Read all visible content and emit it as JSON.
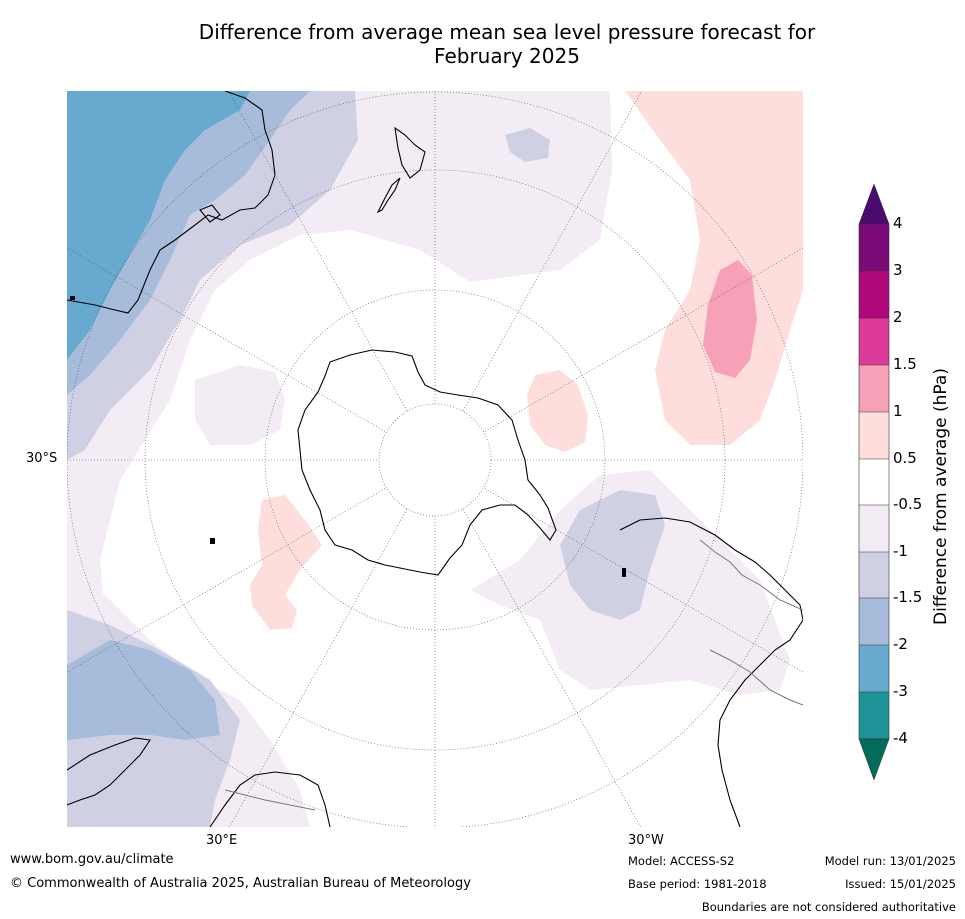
{
  "title_line1": "Difference from average mean sea level pressure forecast for",
  "title_line2": "February 2025",
  "map": {
    "projection": "south polar stereographic",
    "lat_labels": {
      "left": "30°S"
    },
    "lon_labels": {
      "bottom_left": "30°E",
      "bottom_right": "30°W"
    }
  },
  "colorbar": {
    "title": "Difference from average (hPa)",
    "ticks": [
      "4",
      "3",
      "2",
      "1.5",
      "1",
      "0.5",
      "-0.5",
      "-1",
      "-1.5",
      "-2",
      "-3",
      "-4"
    ],
    "colors": {
      "above_4": "#4b0b6e",
      "3_to_4": "#7a0a78",
      "2_to_3": "#b0087a",
      "1.5_to_2": "#dd3a9b",
      "1_to_1.5": "#f7a1b9",
      "0.5_to_1": "#fddedd",
      "-0.5_to_0.5": "#ffffff",
      "-1_to_-0.5": "#f3ecf5",
      "-1.5_to_-1": "#d0d0e5",
      "-2_to_-1.5": "#a7bcdb",
      "-3_to_-2": "#67a9cf",
      "-4_to_-3": "#1e9398",
      "below_-4": "#016c59"
    }
  },
  "footer": {
    "website": "www.bom.gov.au/climate",
    "copyright": "© Commonwealth of Australia 2025, Australian Bureau of Meteorology",
    "model": "Model: ACCESS-S2",
    "base_period": "Base period: 1981-2018",
    "model_run": "Model run: 13/01/2025",
    "issued": "Issued: 15/01/2025",
    "disclaimer": "Boundaries are not considered authoritative"
  }
}
